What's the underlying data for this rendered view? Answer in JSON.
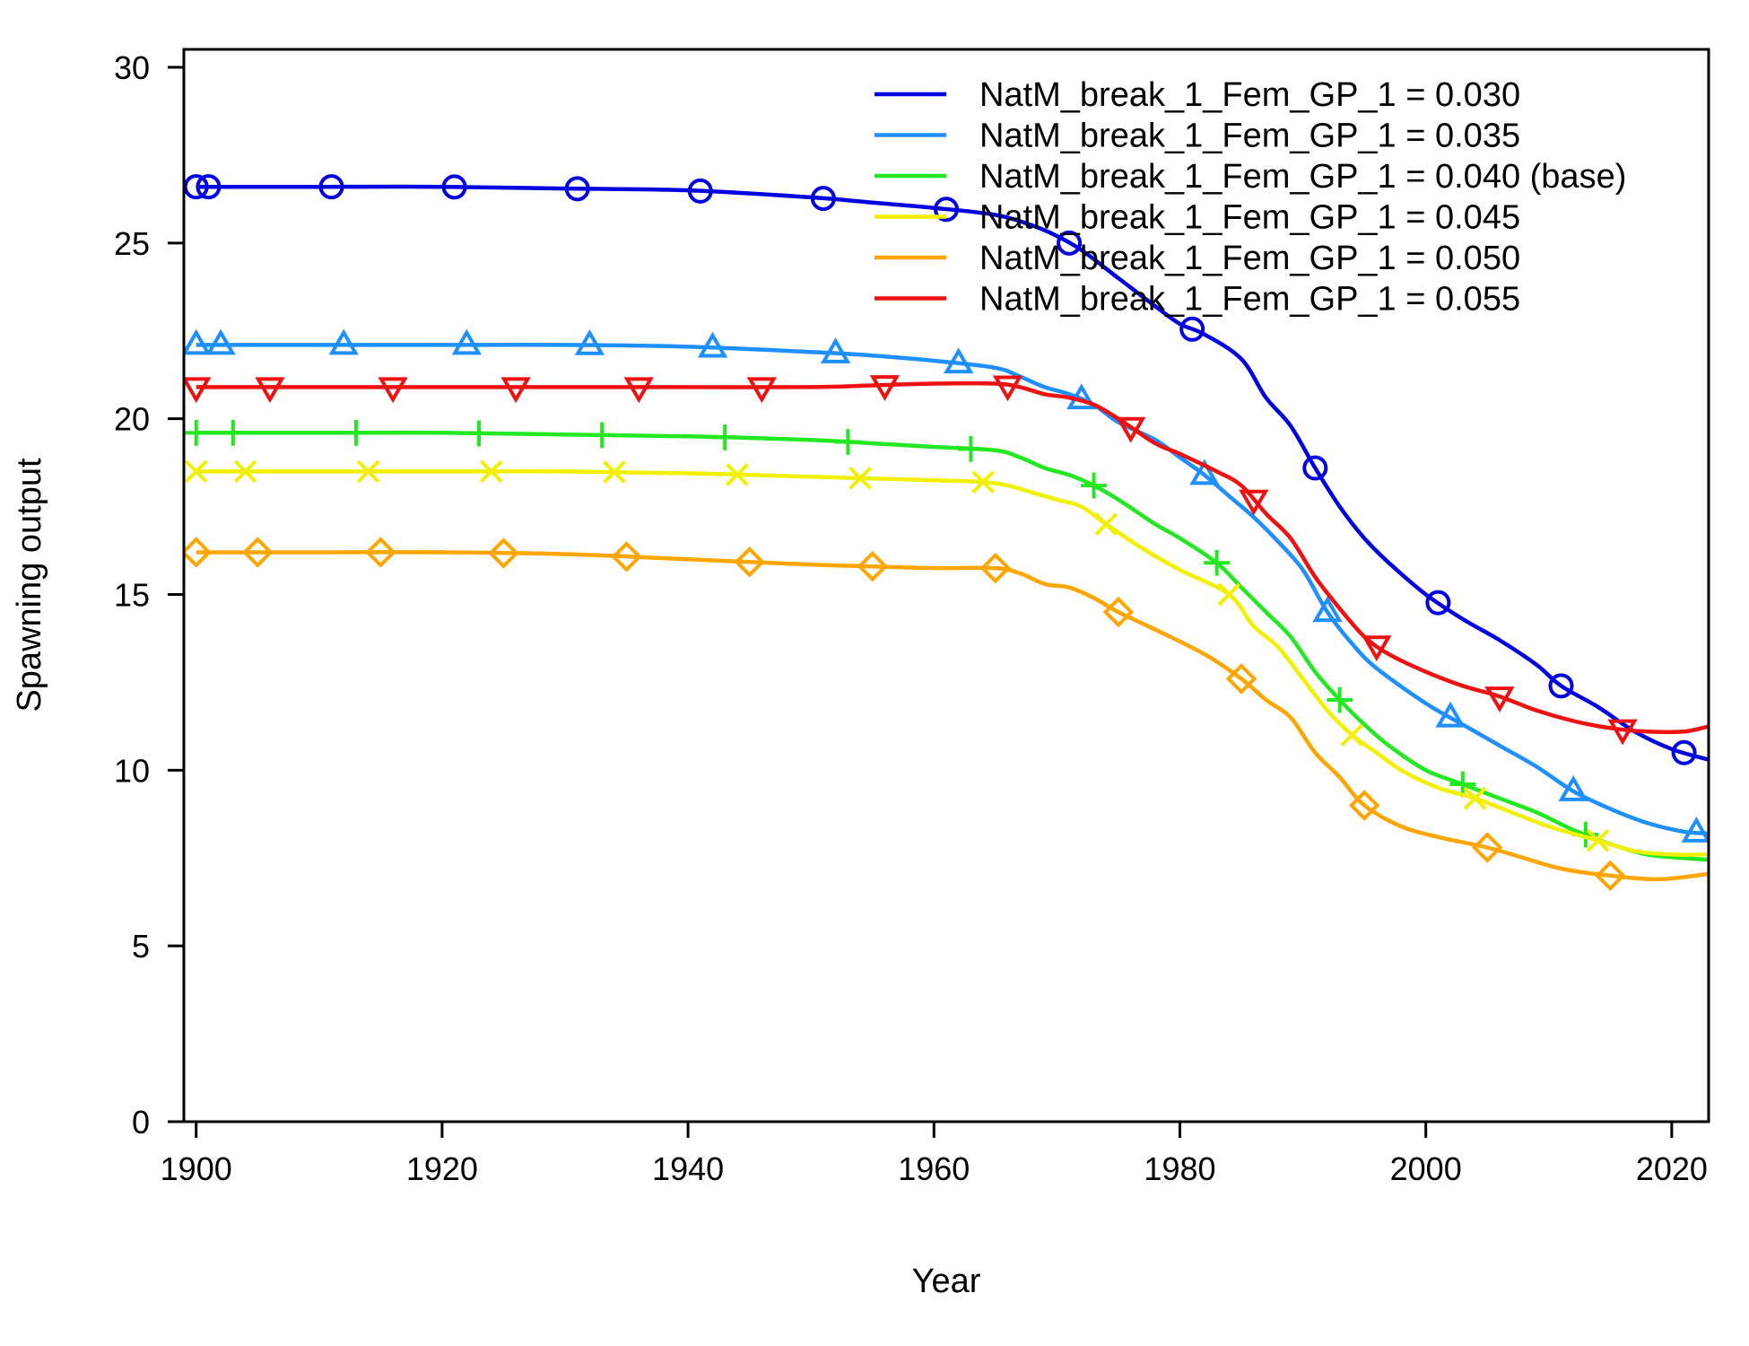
{
  "chart_data": {
    "type": "line",
    "xlabel": "Year",
    "ylabel": "Spawning output",
    "xlim": [
      1899,
      2023
    ],
    "ylim": [
      0,
      30
    ],
    "xticks": [
      1900,
      1920,
      1940,
      1960,
      1980,
      2000,
      2020
    ],
    "yticks": [
      0,
      5,
      10,
      15,
      20,
      25,
      30
    ],
    "legend_position": "top-right",
    "grid": false,
    "series": [
      {
        "name": "NatM_break_1_Fem_GP_1 = 0.030",
        "color": "#0000e0",
        "marker": "circle",
        "x": [
          1900,
          1910,
          1920,
          1930,
          1940,
          1950,
          1955,
          1960,
          1965,
          1968,
          1970,
          1972,
          1975,
          1978,
          1980,
          1982,
          1985,
          1987,
          1989,
          1991,
          1993,
          1995,
          1997,
          2000,
          2003,
          2006,
          2009,
          2011,
          2014,
          2017,
          2020,
          2023
        ],
        "y": [
          26.6,
          26.6,
          26.6,
          26.55,
          26.5,
          26.3,
          26.15,
          26.0,
          25.8,
          25.5,
          25.2,
          24.8,
          24.0,
          23.2,
          22.7,
          22.4,
          21.7,
          20.6,
          19.8,
          18.6,
          17.5,
          16.6,
          15.9,
          15.0,
          14.3,
          13.7,
          13.0,
          12.4,
          11.8,
          11.1,
          10.6,
          10.3
        ],
        "marker_x": [
          1900,
          1901,
          1911,
          1921,
          1931,
          1941,
          1951,
          1961,
          1971,
          1981,
          1991,
          2001,
          2011,
          2021
        ]
      },
      {
        "name": "NatM_break_1_Fem_GP_1 = 0.035",
        "color": "#1e8fff",
        "marker": "triangle-up",
        "x": [
          1900,
          1910,
          1920,
          1930,
          1940,
          1950,
          1955,
          1960,
          1965,
          1967,
          1969,
          1971,
          1973,
          1975,
          1978,
          1980,
          1982,
          1984,
          1986,
          1988,
          1990,
          1992,
          1994,
          1996,
          2000,
          2003,
          2006,
          2009,
          2012,
          2015,
          2018,
          2021,
          2023
        ],
        "y": [
          22.1,
          22.1,
          22.1,
          22.1,
          22.05,
          21.9,
          21.8,
          21.65,
          21.45,
          21.2,
          20.9,
          20.7,
          20.4,
          19.9,
          19.4,
          18.9,
          18.4,
          17.8,
          17.2,
          16.5,
          15.7,
          14.5,
          13.6,
          12.9,
          11.9,
          11.3,
          10.7,
          10.1,
          9.4,
          8.9,
          8.5,
          8.25,
          8.2
        ],
        "marker_x": [
          1900,
          1902,
          1912,
          1922,
          1932,
          1942,
          1952,
          1962,
          1972,
          1982,
          1992,
          2002,
          2012,
          2022
        ]
      },
      {
        "name": "NatM_break_1_Fem_GP_1 = 0.040 (base)",
        "color": "#22e822",
        "marker": "plus",
        "x": [
          1900,
          1910,
          1920,
          1930,
          1940,
          1950,
          1955,
          1960,
          1965,
          1967,
          1969,
          1971,
          1973,
          1975,
          1978,
          1980,
          1983,
          1985,
          1987,
          1989,
          1991,
          1993,
          1995,
          1997,
          2000,
          2003,
          2006,
          2009,
          2012,
          2015,
          2018,
          2021,
          2023
        ],
        "y": [
          19.6,
          19.6,
          19.6,
          19.55,
          19.5,
          19.4,
          19.3,
          19.2,
          19.1,
          18.9,
          18.6,
          18.4,
          18.1,
          17.7,
          17.0,
          16.6,
          15.9,
          15.2,
          14.5,
          13.8,
          12.8,
          12.0,
          11.3,
          10.7,
          10.0,
          9.6,
          9.2,
          8.8,
          8.3,
          7.9,
          7.6,
          7.5,
          7.45
        ],
        "marker_x": [
          1900,
          1903,
          1913,
          1923,
          1933,
          1943,
          1953,
          1963,
          1973,
          1983,
          1993,
          2003,
          2013
        ]
      },
      {
        "name": "NatM_break_1_Fem_GP_1 = 0.045",
        "color": "#f0f000",
        "marker": "x",
        "x": [
          1900,
          1910,
          1920,
          1930,
          1940,
          1950,
          1955,
          1960,
          1964,
          1966,
          1968,
          1970,
          1972,
          1974,
          1977,
          1980,
          1984,
          1986,
          1988,
          1990,
          1992,
          1994,
          1996,
          1998,
          2001,
          2004,
          2007,
          2010,
          2014,
          2017,
          2020,
          2023
        ],
        "y": [
          18.5,
          18.5,
          18.5,
          18.5,
          18.45,
          18.35,
          18.3,
          18.25,
          18.2,
          18.1,
          17.9,
          17.7,
          17.5,
          17.0,
          16.3,
          15.7,
          15.0,
          14.1,
          13.5,
          12.6,
          11.7,
          11.0,
          10.5,
          10.0,
          9.5,
          9.2,
          8.8,
          8.4,
          8.0,
          7.7,
          7.6,
          7.6
        ],
        "marker_x": [
          1900,
          1904,
          1914,
          1924,
          1934,
          1944,
          1954,
          1964,
          1974,
          1984,
          1994,
          2004,
          2014
        ]
      },
      {
        "name": "NatM_break_1_Fem_GP_1 = 0.050",
        "color": "#ffa500",
        "marker": "diamond",
        "x": [
          1900,
          1910,
          1920,
          1930,
          1940,
          1950,
          1955,
          1960,
          1965,
          1967,
          1969,
          1971,
          1973,
          1975,
          1978,
          1982,
          1985,
          1987,
          1989,
          1991,
          1993,
          1995,
          1998,
          2001,
          2005,
          2008,
          2011,
          2015,
          2019,
          2023
        ],
        "y": [
          16.2,
          16.2,
          16.2,
          16.15,
          16.0,
          15.85,
          15.8,
          15.75,
          15.75,
          15.6,
          15.3,
          15.2,
          14.9,
          14.5,
          14.0,
          13.3,
          12.6,
          12.0,
          11.5,
          10.5,
          9.8,
          9.0,
          8.4,
          8.1,
          7.8,
          7.5,
          7.2,
          7.0,
          6.9,
          7.05
        ],
        "marker_x": [
          1900,
          1905,
          1915,
          1925,
          1935,
          1945,
          1955,
          1965,
          1975,
          1985,
          1995,
          2005,
          2015
        ]
      },
      {
        "name": "NatM_break_1_Fem_GP_1 = 0.055",
        "color": "#ee1111",
        "marker": "triangle-down",
        "x": [
          1900,
          1910,
          1920,
          1930,
          1940,
          1950,
          1955,
          1960,
          1965,
          1967,
          1969,
          1971,
          1973,
          1975,
          1978,
          1980,
          1983,
          1985,
          1987,
          1989,
          1991,
          1993,
          1995,
          1997,
          2000,
          2003,
          2006,
          2009,
          2012,
          2015,
          2018,
          2021,
          2023
        ],
        "y": [
          20.9,
          20.9,
          20.9,
          20.9,
          20.9,
          20.9,
          20.95,
          21.0,
          21.0,
          20.9,
          20.7,
          20.6,
          20.4,
          20.0,
          19.3,
          19.0,
          18.5,
          18.1,
          17.3,
          16.6,
          15.5,
          14.6,
          13.8,
          13.3,
          12.8,
          12.4,
          12.1,
          11.7,
          11.4,
          11.2,
          11.1,
          11.1,
          11.25
        ],
        "marker_x": [
          1900,
          1906,
          1916,
          1926,
          1936,
          1946,
          1956,
          1966,
          1976,
          1986,
          1996,
          2006,
          2016
        ]
      }
    ]
  }
}
